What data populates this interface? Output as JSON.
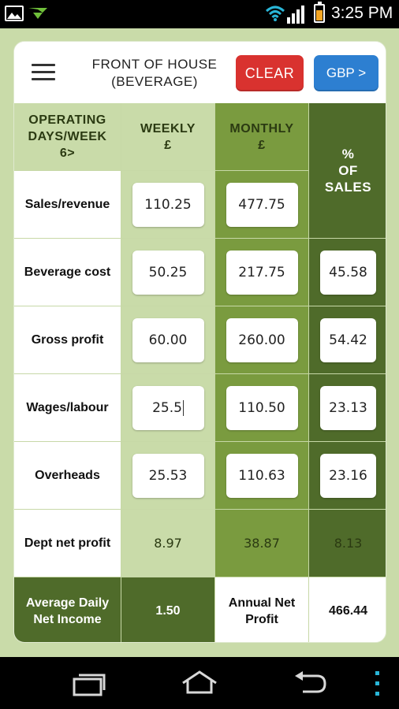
{
  "status_bar": {
    "time": "3:25 PM",
    "icons": [
      "gallery-icon",
      "download-icon",
      "wifi-icon",
      "signal-icon",
      "battery-icon"
    ]
  },
  "header": {
    "title_line1": "FRONT OF HOUSE",
    "title_line2": "(BEVERAGE)",
    "clear_label": "CLEAR",
    "currency_label": "GBP >"
  },
  "columns": {
    "days_line1": "OPERATING",
    "days_line2": "DAYS/WEEK",
    "days_line3": "6>",
    "weekly_line1": "WEEKLY",
    "weekly_line2": "£",
    "monthly_line1": "MONTHLY",
    "monthly_line2": "£",
    "pct_line1": "%",
    "pct_line2": "OF",
    "pct_line3": "SALES"
  },
  "rows": [
    {
      "label": "Sales/revenue",
      "weekly": "110.25",
      "monthly": "477.75",
      "percent": ""
    },
    {
      "label": "Beverage cost",
      "weekly": "50.25",
      "monthly": "217.75",
      "percent": "45.58"
    },
    {
      "label": "Gross profit",
      "weekly": "60.00",
      "monthly": "260.00",
      "percent": "54.42"
    },
    {
      "label": "Wages/labour",
      "weekly": "25.5",
      "monthly": "110.50",
      "percent": "23.13"
    },
    {
      "label": "Overheads",
      "weekly": "25.53",
      "monthly": "110.63",
      "percent": "23.16"
    },
    {
      "label": "Dept net profit",
      "weekly": "8.97",
      "monthly": "38.87",
      "percent": "8.13"
    }
  ],
  "footer": {
    "avg_daily_line1": "Average Daily",
    "avg_daily_line2": "Net Income",
    "avg_daily_value": "1.50",
    "annual_line1": "Annual Net",
    "annual_line2": "Profit",
    "annual_value": "466.44"
  },
  "colors": {
    "light_green": "#c9dba9",
    "mid_green": "#7a9b3f",
    "dark_green": "#4f6b2a",
    "clear_red": "#d9322f",
    "gbp_blue": "#2d7fd1"
  }
}
